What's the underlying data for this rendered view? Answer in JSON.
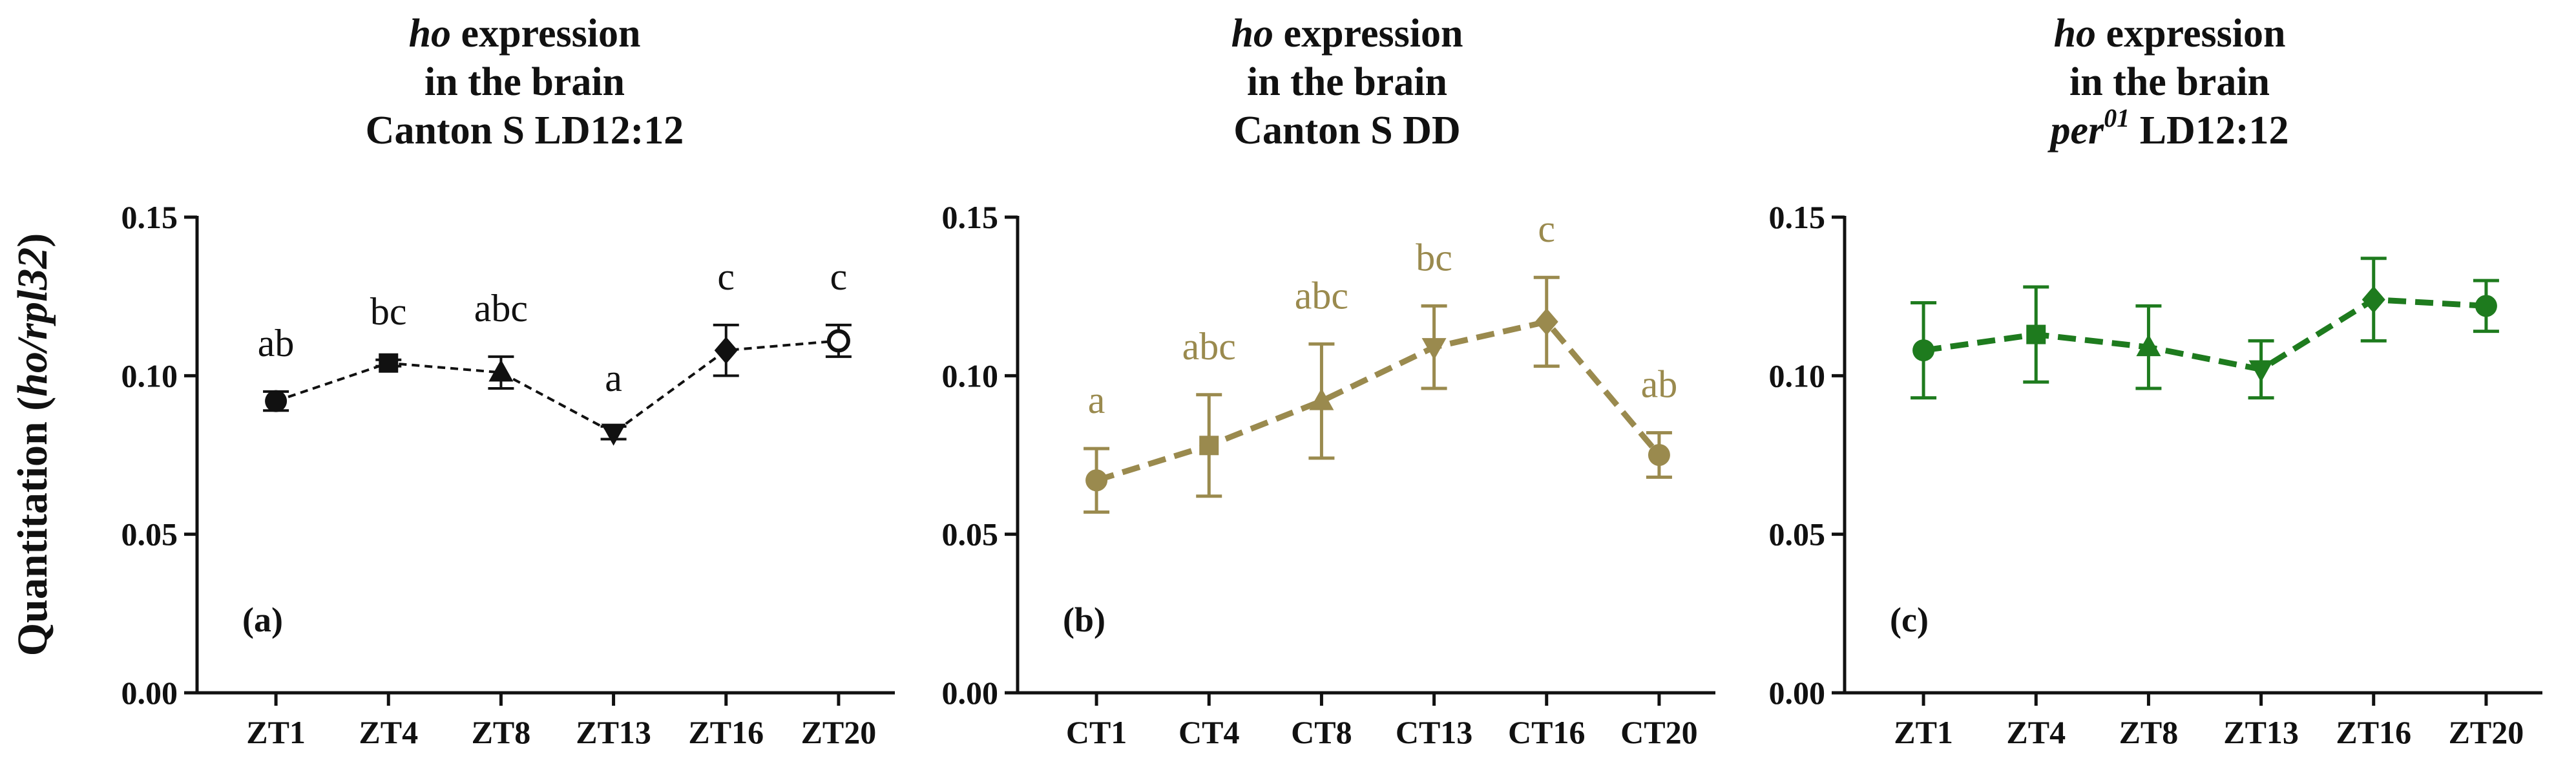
{
  "ylabel_parts": [
    "Quantitation (",
    "ho/rpl32",
    ")"
  ],
  "chart_data": [
    {
      "type": "line",
      "title_lines": [
        [
          "ho",
          " expression"
        ],
        [
          "in the brain"
        ],
        [
          "Canton S LD12:12"
        ]
      ],
      "panel_label": "(a)",
      "categories": [
        "ZT1",
        "ZT4",
        "ZT8",
        "ZT13",
        "ZT16",
        "ZT20"
      ],
      "values": [
        0.092,
        0.104,
        0.101,
        0.082,
        0.108,
        0.111
      ],
      "errors": [
        0.003,
        0.001,
        0.005,
        0.002,
        0.008,
        0.005
      ],
      "markers": [
        "circle",
        "square",
        "triangle",
        "triangle-down",
        "diamond",
        "circle-open"
      ],
      "significance": [
        "ab",
        "bc",
        "abc",
        "a",
        "c",
        "c"
      ],
      "color": "#111111",
      "ylim": [
        0,
        0.15
      ],
      "yticks": [
        "0.00",
        "0.05",
        "0.10",
        "0.15"
      ]
    },
    {
      "type": "line",
      "title_lines": [
        [
          "ho",
          " expression"
        ],
        [
          "in the brain"
        ],
        [
          "Canton S DD"
        ]
      ],
      "panel_label": "(b)",
      "categories": [
        "CT1",
        "CT4",
        "CT8",
        "CT13",
        "CT16",
        "CT20"
      ],
      "values": [
        0.067,
        0.078,
        0.092,
        0.109,
        0.117,
        0.075
      ],
      "errors": [
        0.01,
        0.016,
        0.018,
        0.013,
        0.014,
        0.007
      ],
      "markers": [
        "circle",
        "square",
        "triangle",
        "triangle-down",
        "diamond",
        "circle"
      ],
      "significance": [
        "a",
        "abc",
        "abc",
        "bc",
        "c",
        "ab"
      ],
      "color": "#9a8a4e",
      "ylim": [
        0,
        0.15
      ],
      "yticks": [
        "0.00",
        "0.05",
        "0.10",
        "0.15"
      ]
    },
    {
      "type": "line",
      "title_lines": [
        [
          "ho",
          " expression"
        ],
        [
          "in the brain"
        ],
        [
          "per",
          "01",
          " LD12:12"
        ]
      ],
      "panel_label": "(c)",
      "categories": [
        "ZT1",
        "ZT4",
        "ZT8",
        "ZT13",
        "ZT16",
        "ZT20"
      ],
      "values": [
        0.108,
        0.113,
        0.109,
        0.102,
        0.124,
        0.122
      ],
      "errors": [
        0.015,
        0.015,
        0.013,
        0.009,
        0.013,
        0.008
      ],
      "markers": [
        "circle",
        "square",
        "triangle",
        "triangle-down",
        "diamond",
        "circle"
      ],
      "significance": [],
      "color": "#1e7b1e",
      "ylim": [
        0,
        0.15
      ],
      "yticks": [
        "0.00",
        "0.05",
        "0.10",
        "0.15"
      ]
    }
  ]
}
